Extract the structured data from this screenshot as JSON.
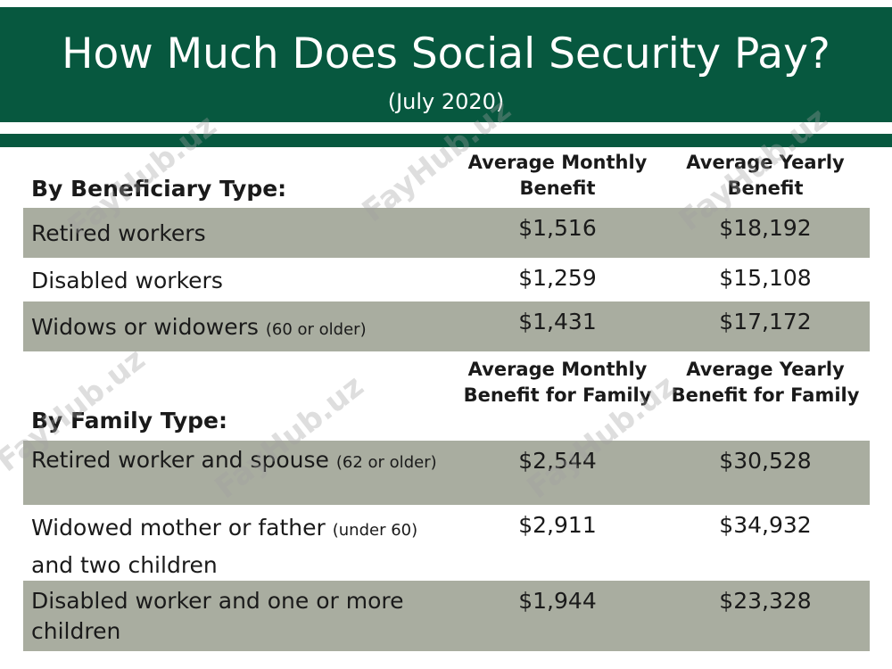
{
  "header": {
    "title": "How Much Does Social Security Pay?",
    "subtitle": "(July 2020)"
  },
  "colors": {
    "header_green": "#07583f",
    "row_shade": "#a9ada0"
  },
  "watermark": {
    "text": "FayHub.uz"
  },
  "beneficiary": {
    "title": "By Beneficiary Type:",
    "col1": "Average Monthly Benefit",
    "col2": "Average Yearly Benefit",
    "rows": [
      {
        "label": "Retired workers",
        "note": "",
        "monthly": "$1,516",
        "yearly": "$18,192"
      },
      {
        "label": "Disabled workers",
        "note": "",
        "monthly": "$1,259",
        "yearly": "$15,108"
      },
      {
        "label": "Widows or widowers",
        "note": "(60 or older)",
        "monthly": "$1,431",
        "yearly": "$17,172"
      }
    ]
  },
  "family": {
    "title": "By Family Type:",
    "col1": "Average Monthly Benefit for Family",
    "col2": "Average Yearly Benefit for Family",
    "rows": [
      {
        "label": "Retired worker and spouse",
        "note": "(62 or older)",
        "label_after": "",
        "monthly": "$2,544",
        "yearly": "$30,528"
      },
      {
        "label": "Widowed mother or father",
        "note": "(under 60)",
        "label_after": "and two children",
        "monthly": "$2,911",
        "yearly": "$34,932"
      },
      {
        "label": "Disabled worker and one or more children",
        "note": "",
        "label_after": "",
        "monthly": "$1,944",
        "yearly": "$23,328"
      }
    ]
  },
  "chart_data": {
    "type": "table",
    "title": "How Much Does Social Security Pay?",
    "subtitle": "(July 2020)",
    "tables": [
      {
        "title": "By Beneficiary Type:",
        "columns": [
          "Average Monthly Benefit",
          "Average Yearly Benefit"
        ],
        "rows": [
          {
            "label": "Retired workers",
            "values": [
              1516,
              18192
            ]
          },
          {
            "label": "Disabled workers",
            "values": [
              1259,
              15108
            ]
          },
          {
            "label": "Widows or widowers (60 or older)",
            "values": [
              1431,
              17172
            ]
          }
        ]
      },
      {
        "title": "By Family Type:",
        "columns": [
          "Average Monthly Benefit for Family",
          "Average Yearly Benefit for Family"
        ],
        "rows": [
          {
            "label": "Retired worker and spouse (62 or older)",
            "values": [
              2544,
              30528
            ]
          },
          {
            "label": "Widowed mother or father (under 60) and two children",
            "values": [
              2911,
              34932
            ]
          },
          {
            "label": "Disabled worker and one or more children",
            "values": [
              1944,
              23328
            ]
          }
        ]
      }
    ]
  }
}
